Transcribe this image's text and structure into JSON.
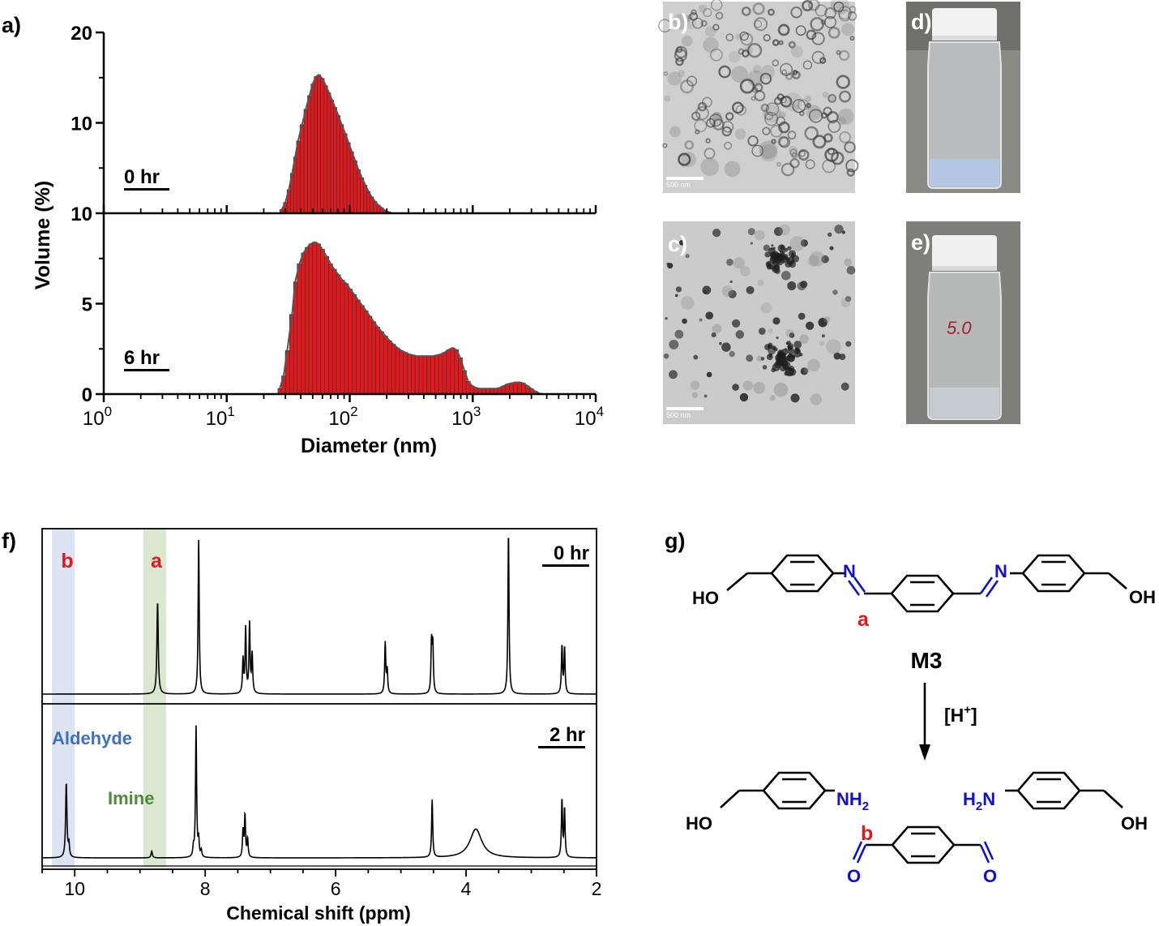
{
  "panel_labels": {
    "a": "a)",
    "b": "b)",
    "c": "c)",
    "d": "d)",
    "e": "e)",
    "f": "f)",
    "g": "g)"
  },
  "colors": {
    "bar": "#e8151b",
    "curve": "#555555",
    "imine_band": "#d9e8cf",
    "aldehyde_band": "#dce4f3",
    "label_red": "#e0191f",
    "label_blue": "#3f6fbf",
    "label_green": "#4e8a3a",
    "n_blue": "#1010d0"
  },
  "scale_bar_text": "500 nm",
  "tem_images": {
    "b": "tem-micrograph-b",
    "c": "tem-micrograph-c"
  },
  "vial_photos": {
    "d": "vial-photo-d",
    "e": "vial-photo-e",
    "e_handwriting": "5.0"
  },
  "chart_data": [
    {
      "type": "bar",
      "panel": "a",
      "xlabel": "Diameter (nm)",
      "ylabel": "Volume (%)",
      "xscale": "log",
      "xlim": [
        1,
        10000
      ],
      "xticks": [
        "10",
        "10",
        "10",
        "10",
        "10"
      ],
      "xtick_exponents": [
        "0",
        "1",
        "2",
        "3",
        "4"
      ],
      "series": [
        {
          "name": "0 hr",
          "ylim": [
            0,
            20
          ],
          "ytick_labels": [
            "10",
            "10",
            "20"
          ],
          "x": [
            28,
            30,
            32,
            34,
            36,
            38,
            41,
            44,
            47,
            50,
            53,
            56,
            60,
            64,
            68,
            72,
            76,
            81,
            86,
            92,
            98,
            104,
            111,
            118,
            126,
            134,
            142,
            151,
            161,
            171,
            182,
            194,
            206,
            219
          ],
          "values": [
            0.4,
            1.2,
            2.6,
            4.4,
            6.2,
            8.0,
            9.8,
            11.5,
            13.0,
            14.3,
            15.1,
            15.3,
            14.9,
            14.1,
            13.3,
            12.5,
            11.7,
            10.8,
            9.8,
            8.8,
            7.8,
            6.8,
            5.8,
            4.8,
            3.9,
            3.1,
            2.4,
            1.8,
            1.3,
            0.9,
            0.6,
            0.3,
            0.15,
            0.05
          ]
        },
        {
          "name": "6 hr",
          "ylim": [
            0,
            10
          ],
          "ytick_labels": [
            "0",
            "5",
            "10"
          ],
          "x": [
            27,
            29,
            31,
            34,
            36,
            39,
            42,
            45,
            48,
            52,
            56,
            60,
            65,
            70,
            75,
            81,
            87,
            94,
            101,
            109,
            117,
            126,
            136,
            146,
            157,
            169,
            182,
            196,
            211,
            227,
            245,
            263,
            283,
            305,
            328,
            353,
            380,
            409,
            440,
            474,
            510,
            549,
            591,
            636,
            685,
            737,
            794,
            855,
            920,
            990,
            1066,
            1148,
            1236,
            1330,
            1432,
            1542,
            1660,
            1787,
            1924,
            2071,
            2230,
            2401,
            2585,
            2783,
            2996,
            3226,
            3473
          ],
          "values": [
            0.3,
            1.0,
            2.4,
            4.4,
            6.2,
            7.2,
            7.8,
            8.1,
            8.3,
            8.4,
            8.3,
            8.0,
            7.6,
            7.2,
            6.9,
            6.6,
            6.3,
            6.1,
            5.8,
            5.5,
            5.2,
            4.9,
            4.6,
            4.3,
            4.0,
            3.7,
            3.45,
            3.2,
            2.95,
            2.75,
            2.55,
            2.4,
            2.3,
            2.2,
            2.15,
            2.1,
            2.1,
            2.1,
            2.1,
            2.1,
            2.15,
            2.2,
            2.3,
            2.45,
            2.55,
            2.45,
            2.0,
            1.3,
            0.7,
            0.45,
            0.35,
            0.3,
            0.3,
            0.3,
            0.3,
            0.3,
            0.35,
            0.45,
            0.55,
            0.6,
            0.65,
            0.65,
            0.6,
            0.45,
            0.3,
            0.15,
            0.05
          ]
        }
      ]
    },
    {
      "type": "line",
      "panel": "f",
      "xlabel": "Chemical shift (ppm)",
      "ylabel": "",
      "xlim": [
        10.5,
        2
      ],
      "xticks": [
        10,
        8,
        6,
        4,
        2
      ],
      "band_labels": {
        "aldehyde_letter": "b",
        "imine_letter": "a",
        "aldehyde": "Aldehyde",
        "imine": "Imine"
      },
      "bands": [
        {
          "label": "b",
          "from": 10.35,
          "to": 10.0
        },
        {
          "label": "a",
          "from": 8.95,
          "to": 8.6
        }
      ],
      "series": [
        {
          "name": "0 hr",
          "peaks": [
            {
              "ppm": 8.73,
              "height": 0.6,
              "width": 0.012
            },
            {
              "ppm": 8.1,
              "height": 1.0,
              "width": 0.01
            },
            {
              "ppm": 7.42,
              "height": 0.22,
              "width": 0.01
            },
            {
              "ppm": 7.38,
              "height": 0.42,
              "width": 0.01
            },
            {
              "ppm": 7.32,
              "height": 0.45,
              "width": 0.01
            },
            {
              "ppm": 7.28,
              "height": 0.25,
              "width": 0.01
            },
            {
              "ppm": 5.24,
              "height": 0.33,
              "width": 0.01
            },
            {
              "ppm": 5.21,
              "height": 0.15,
              "width": 0.01
            },
            {
              "ppm": 4.53,
              "height": 0.33,
              "width": 0.01
            },
            {
              "ppm": 4.51,
              "height": 0.31,
              "width": 0.01
            },
            {
              "ppm": 3.35,
              "height": 1.05,
              "width": 0.01
            },
            {
              "ppm": 2.53,
              "height": 0.31,
              "width": 0.01
            },
            {
              "ppm": 2.49,
              "height": 0.3,
              "width": 0.01
            }
          ]
        },
        {
          "name": "2 hr",
          "peaks": [
            {
              "ppm": 10.13,
              "height": 0.57,
              "width": 0.012
            },
            {
              "ppm": 10.09,
              "height": 0.1,
              "width": 0.01
            },
            {
              "ppm": 8.82,
              "height": 0.05,
              "width": 0.012
            },
            {
              "ppm": 8.18,
              "height": 0.07,
              "width": 0.01
            },
            {
              "ppm": 8.14,
              "height": 1.0,
              "width": 0.01
            },
            {
              "ppm": 8.1,
              "height": 0.12,
              "width": 0.01
            },
            {
              "ppm": 8.06,
              "height": 0.05,
              "width": 0.01
            },
            {
              "ppm": 7.42,
              "height": 0.2,
              "width": 0.01
            },
            {
              "ppm": 7.39,
              "height": 0.32,
              "width": 0.01
            },
            {
              "ppm": 7.35,
              "height": 0.14,
              "width": 0.01
            },
            {
              "ppm": 4.52,
              "height": 0.44,
              "width": 0.01
            },
            {
              "ppm": 3.85,
              "height": 0.22,
              "width": 0.11
            },
            {
              "ppm": 2.53,
              "height": 0.44,
              "width": 0.01
            },
            {
              "ppm": 2.49,
              "height": 0.37,
              "width": 0.01
            }
          ]
        }
      ]
    }
  ],
  "scheme": {
    "label_M3": "M3",
    "reagent": "[H+]",
    "reagent_main": "[H",
    "reagent_sup": "+",
    "reagent_close": "]",
    "HO": "HO",
    "OH": "OH",
    "N": "N",
    "NH": "NH",
    "sub2": "2",
    "H": "H",
    "O": "O",
    "label_a": "a",
    "label_b": "b"
  }
}
